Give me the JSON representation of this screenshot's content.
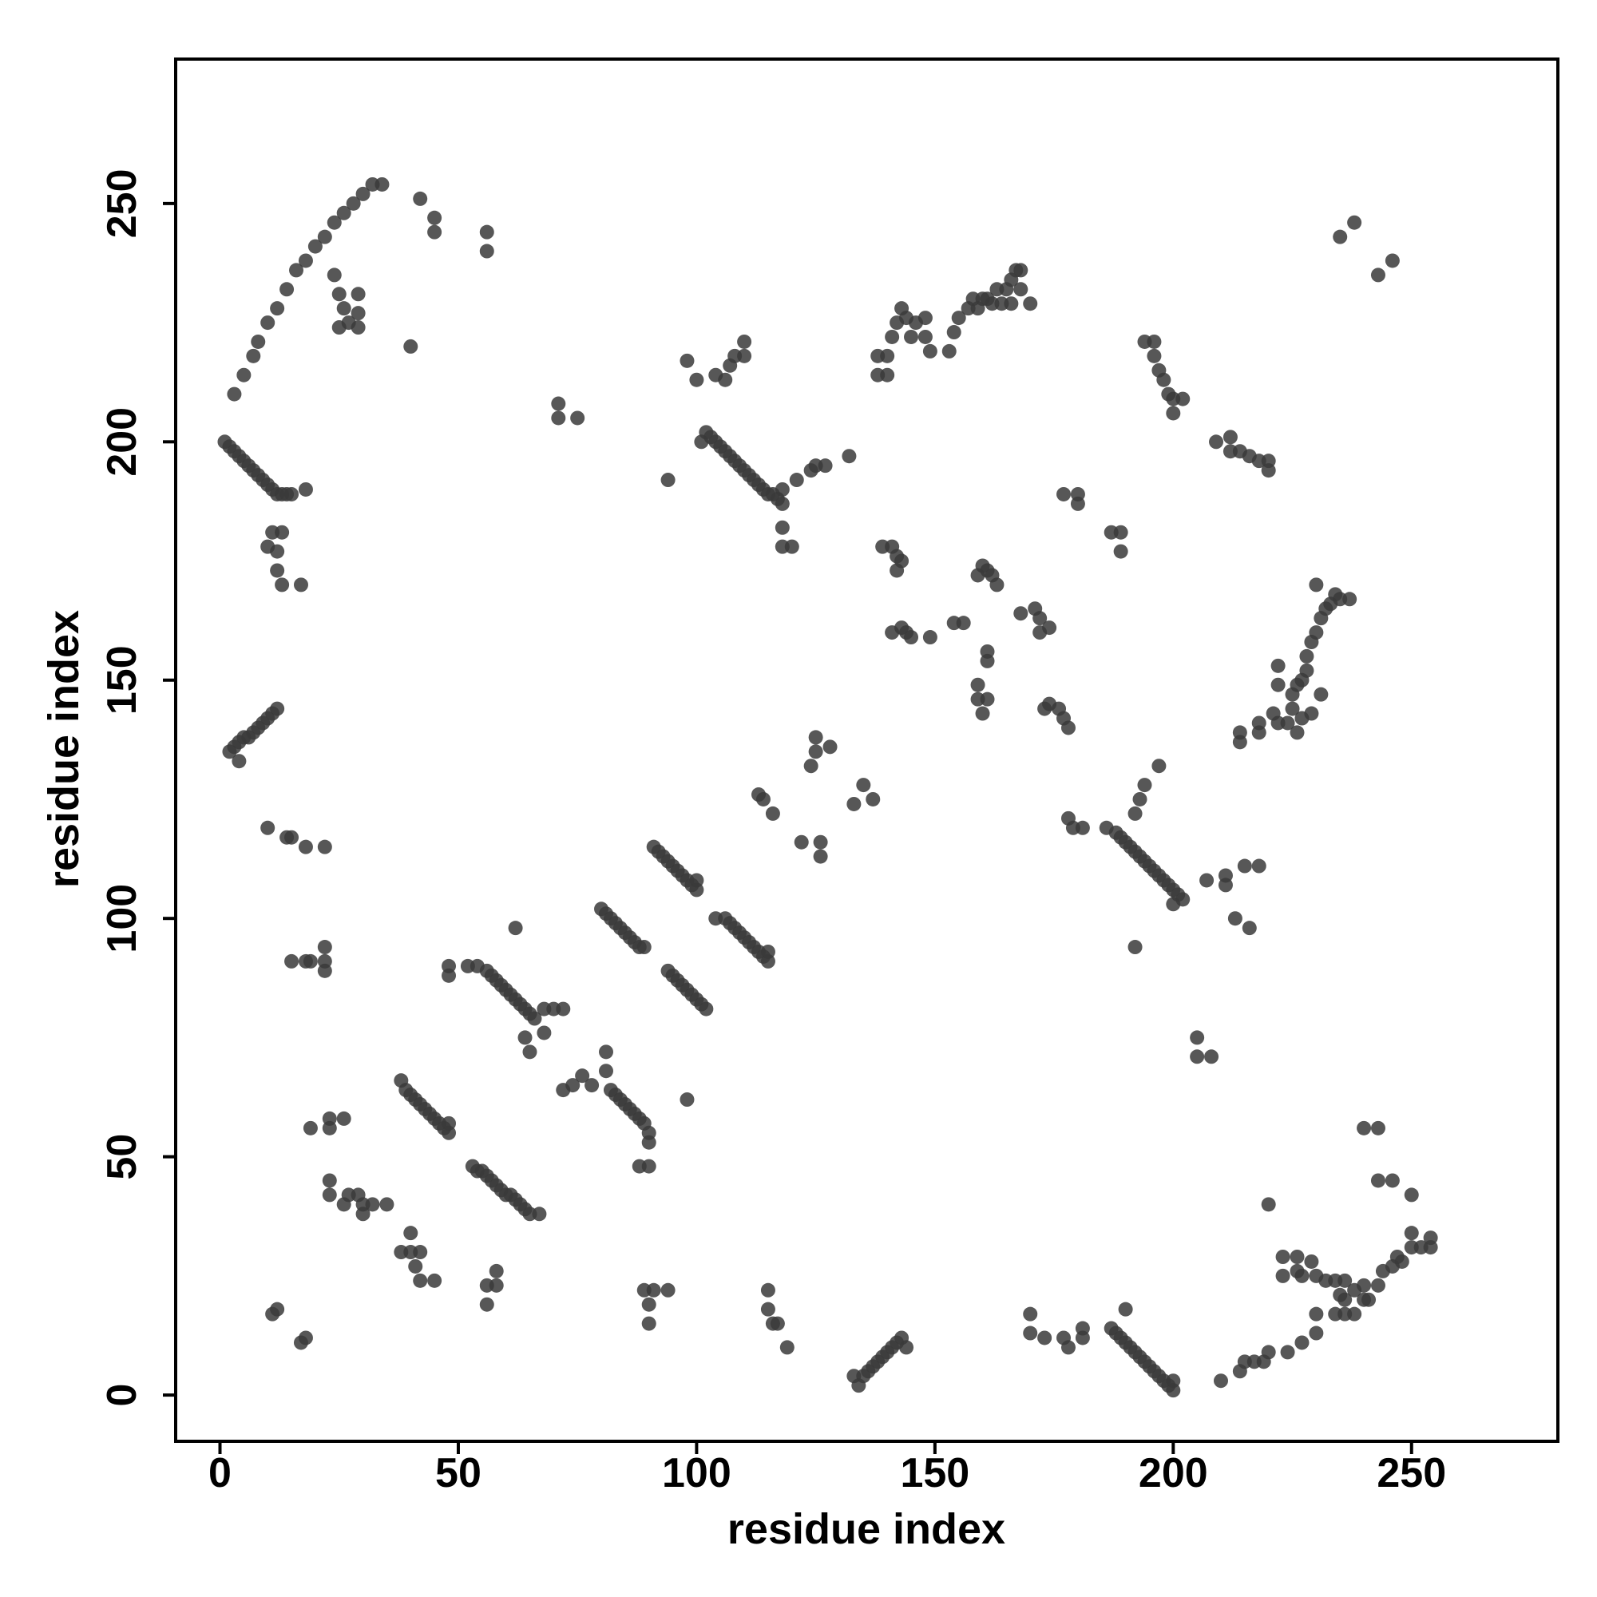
{
  "chart_data": {
    "type": "scatter",
    "color": "#3a3a3a",
    "x_label": "residue index",
    "y_label": "residue index",
    "xlim": [
      -9.3,
      280.7
    ],
    "ylim": [
      -9.7,
      280.3
    ],
    "xticks": [
      0,
      50,
      100,
      150,
      200,
      250
    ],
    "yticks": [
      0,
      50,
      100,
      150,
      200,
      250
    ],
    "x": [
      3,
      5,
      7,
      8,
      10,
      12,
      14,
      16,
      18,
      20,
      22,
      24,
      26,
      28,
      30,
      32,
      34,
      24,
      25,
      26,
      27,
      29,
      29,
      29,
      25,
      40,
      42,
      45,
      45,
      56,
      56,
      1,
      2,
      3,
      4,
      5,
      6,
      7,
      8,
      9,
      10,
      11,
      12,
      13,
      14,
      15,
      18,
      11,
      13,
      10,
      12,
      12,
      13,
      17,
      2,
      3,
      4,
      5,
      6,
      7,
      8,
      9,
      10,
      11,
      12,
      4,
      10,
      14,
      15,
      18,
      22,
      15,
      18,
      19,
      22,
      22,
      22,
      19,
      23,
      26,
      23,
      23,
      23,
      26,
      27,
      29,
      30,
      30,
      32,
      35,
      38,
      40,
      40,
      41,
      42,
      42,
      45,
      11,
      12,
      17,
      18,
      38,
      39,
      40,
      41,
      42,
      43,
      44,
      45,
      46,
      47,
      48,
      48,
      53,
      54,
      55,
      56,
      57,
      58,
      59,
      60,
      61,
      62,
      63,
      64,
      65,
      67,
      56,
      58,
      58,
      56,
      52,
      54,
      56,
      57,
      58,
      59,
      60,
      61,
      62,
      63,
      64,
      65,
      66,
      68,
      70,
      72,
      64,
      65,
      68,
      62,
      48,
      48,
      80,
      81,
      82,
      83,
      84,
      85,
      86,
      87,
      88,
      89,
      72,
      74,
      76,
      78,
      81,
      81,
      82,
      83,
      84,
      85,
      86,
      87,
      88,
      89,
      90,
      90,
      88,
      90,
      98,
      91,
      92,
      93,
      94,
      95,
      96,
      97,
      98,
      99,
      100,
      100,
      94,
      95,
      96,
      97,
      98,
      99,
      100,
      101,
      102,
      104,
      106,
      107,
      108,
      109,
      110,
      111,
      112,
      113,
      114,
      115,
      115,
      101,
      102,
      103,
      104,
      105,
      106,
      107,
      108,
      109,
      110,
      111,
      112,
      113,
      114,
      115,
      116,
      117,
      118,
      118,
      118,
      118,
      120,
      121,
      124,
      125,
      127,
      132,
      104,
      106,
      107,
      108,
      110,
      110,
      98,
      100,
      94,
      71,
      71,
      75,
      113,
      114,
      116,
      124,
      125,
      125,
      128,
      122,
      126,
      126,
      133,
      135,
      137,
      133,
      134,
      135,
      136,
      137,
      138,
      139,
      140,
      141,
      142,
      143,
      144,
      115,
      115,
      116,
      117,
      119,
      89,
      91,
      90,
      90,
      94,
      138,
      140,
      138,
      140,
      141,
      142,
      143,
      144,
      145,
      146,
      148,
      148,
      149,
      153,
      154,
      155,
      157,
      158,
      159,
      160,
      161,
      163,
      165,
      166,
      167,
      168,
      168,
      170,
      166,
      164,
      162,
      139,
      141,
      142,
      143,
      142,
      141,
      143,
      144,
      145,
      149,
      154,
      156,
      159,
      160,
      161,
      162,
      163,
      161,
      161,
      159,
      159,
      160,
      161,
      168,
      171,
      172,
      172,
      174,
      173,
      174,
      176,
      177,
      178,
      177,
      180,
      180,
      187,
      189,
      189,
      178,
      179,
      181,
      186,
      188,
      189,
      190,
      191,
      192,
      193,
      194,
      195,
      196,
      197,
      198,
      199,
      200,
      201,
      202,
      200,
      192,
      192,
      193,
      194,
      197,
      207,
      211,
      215,
      218,
      211,
      213,
      216,
      205,
      205,
      208,
      187,
      188,
      189,
      190,
      191,
      192,
      193,
      194,
      195,
      196,
      197,
      198,
      199,
      200,
      200,
      190,
      170,
      170,
      173,
      177,
      178,
      181,
      181,
      210,
      214,
      215,
      217,
      219,
      220,
      224,
      227,
      230,
      230,
      223,
      226,
      226,
      227,
      229,
      230,
      232,
      234,
      235,
      236,
      238,
      240,
      241,
      243,
      244,
      246,
      247,
      248,
      250,
      252,
      254,
      254,
      250,
      238,
      240,
      223,
      234,
      236,
      220,
      240,
      243,
      243,
      246,
      250,
      236,
      209,
      212,
      212,
      214,
      216,
      218,
      220,
      220,
      194,
      196,
      196,
      197,
      198,
      199,
      200,
      200,
      202,
      222,
      224,
      225,
      225,
      226,
      227,
      228,
      229,
      230,
      231,
      232,
      233,
      234,
      235,
      237,
      226,
      227,
      229,
      231,
      228,
      222,
      222,
      214,
      214,
      218,
      218,
      221,
      230,
      235,
      238,
      243,
      246
    ],
    "values": [
      210,
      214,
      218,
      221,
      225,
      228,
      232,
      236,
      238,
      241,
      243,
      246,
      248,
      250,
      252,
      254,
      254,
      235,
      231,
      228,
      225,
      231,
      227,
      224,
      224,
      220,
      251,
      247,
      244,
      244,
      240,
      200,
      199,
      198,
      197,
      196,
      195,
      194,
      193,
      192,
      191,
      190,
      189,
      189,
      189,
      189,
      190,
      181,
      181,
      178,
      177,
      173,
      170,
      170,
      135,
      136,
      137,
      138,
      138,
      139,
      140,
      141,
      142,
      143,
      144,
      133,
      119,
      117,
      117,
      115,
      115,
      91,
      91,
      91,
      91,
      94,
      89,
      56,
      58,
      58,
      56,
      45,
      42,
      40,
      42,
      42,
      40,
      38,
      40,
      40,
      30,
      34,
      30,
      27,
      30,
      24,
      24,
      17,
      18,
      11,
      12,
      66,
      64,
      63,
      62,
      61,
      60,
      59,
      58,
      57,
      56,
      55,
      57,
      48,
      47,
      47,
      46,
      45,
      44,
      43,
      42,
      42,
      41,
      40,
      39,
      38,
      38,
      23,
      23,
      26,
      19,
      90,
      90,
      89,
      88,
      87,
      86,
      85,
      84,
      83,
      82,
      81,
      80,
      79,
      81,
      81,
      81,
      75,
      72,
      76,
      98,
      90,
      88,
      102,
      101,
      100,
      99,
      98,
      97,
      96,
      95,
      94,
      94,
      64,
      65,
      67,
      65,
      68,
      72,
      64,
      63,
      62,
      61,
      60,
      59,
      58,
      57,
      55,
      53,
      48,
      48,
      62,
      115,
      114,
      113,
      112,
      111,
      110,
      109,
      108,
      107,
      106,
      108,
      89,
      88,
      87,
      86,
      85,
      84,
      83,
      82,
      81,
      100,
      100,
      99,
      98,
      97,
      96,
      95,
      94,
      93,
      92,
      91,
      93,
      200,
      202,
      201,
      200,
      199,
      198,
      197,
      196,
      195,
      194,
      193,
      192,
      191,
      190,
      189,
      189,
      188,
      187,
      190,
      182,
      178,
      178,
      192,
      194,
      195,
      195,
      197,
      214,
      213,
      216,
      218,
      218,
      221,
      217,
      213,
      192,
      208,
      205,
      205,
      126,
      125,
      122,
      132,
      138,
      135,
      136,
      116,
      116,
      113,
      124,
      128,
      125,
      4,
      2,
      4,
      5,
      6,
      7,
      8,
      9,
      10,
      11,
      12,
      10,
      22,
      18,
      15,
      15,
      10,
      22,
      22,
      19,
      15,
      22,
      214,
      214,
      218,
      218,
      222,
      225,
      228,
      226,
      222,
      225,
      226,
      222,
      219,
      219,
      223,
      226,
      228,
      230,
      228,
      230,
      230,
      232,
      232,
      234,
      236,
      236,
      232,
      229,
      229,
      229,
      229,
      178,
      178,
      176,
      175,
      173,
      160,
      161,
      160,
      159,
      159,
      162,
      162,
      172,
      174,
      173,
      172,
      170,
      156,
      154,
      149,
      146,
      143,
      146,
      164,
      165,
      163,
      160,
      161,
      144,
      145,
      144,
      142,
      140,
      189,
      189,
      187,
      181,
      181,
      177,
      121,
      119,
      119,
      119,
      118,
      117,
      116,
      115,
      114,
      113,
      112,
      111,
      110,
      109,
      108,
      107,
      106,
      105,
      104,
      103,
      94,
      122,
      125,
      128,
      132,
      108,
      109,
      111,
      111,
      107,
      100,
      98,
      75,
      71,
      71,
      14,
      13,
      12,
      11,
      10,
      9,
      8,
      7,
      6,
      5,
      4,
      3,
      2,
      1,
      3,
      18,
      17,
      13,
      12,
      12,
      10,
      12,
      14,
      3,
      5,
      7,
      7,
      7,
      9,
      9,
      11,
      13,
      17,
      29,
      29,
      26,
      25,
      28,
      25,
      24,
      24,
      21,
      20,
      22,
      23,
      20,
      23,
      26,
      27,
      29,
      28,
      31,
      31,
      33,
      31,
      34,
      17,
      20,
      25,
      17,
      17,
      40,
      56,
      56,
      45,
      45,
      42,
      24,
      200,
      201,
      198,
      198,
      197,
      196,
      196,
      194,
      221,
      221,
      218,
      215,
      213,
      210,
      209,
      206,
      209,
      141,
      141,
      144,
      147,
      149,
      150,
      155,
      158,
      160,
      163,
      165,
      166,
      168,
      167,
      167,
      139,
      142,
      143,
      147,
      152,
      153,
      149,
      137,
      139,
      139,
      141,
      143,
      170,
      243,
      246,
      235,
      238
    ]
  }
}
